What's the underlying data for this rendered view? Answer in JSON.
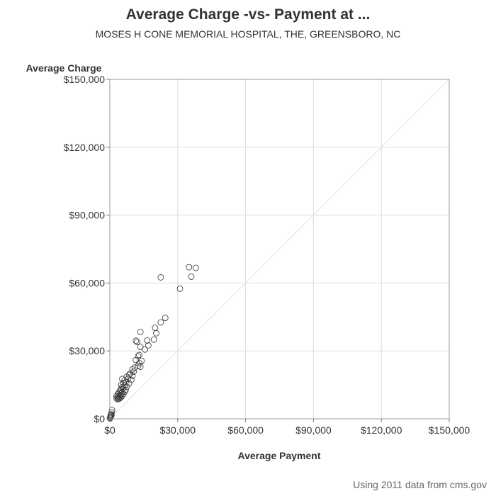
{
  "chart_data": {
    "type": "scatter",
    "title": "Average Charge -vs- Payment at ...",
    "subtitle": "MOSES H CONE MEMORIAL HOSPITAL, THE, GREENSBORO, NC",
    "xlabel": "Average Payment",
    "ylabel": "Average Charge",
    "xlim": [
      0,
      150000
    ],
    "ylim": [
      0,
      150000
    ],
    "xticks": [
      0,
      30000,
      60000,
      90000,
      120000,
      150000
    ],
    "yticks": [
      0,
      30000,
      60000,
      90000,
      120000,
      150000
    ],
    "xtick_labels": [
      "$0",
      "$30,000",
      "$60,000",
      "$90,000",
      "$120,000",
      "$150,000"
    ],
    "ytick_labels": [
      "$0",
      "$30,000",
      "$60,000",
      "$90,000",
      "$120,000",
      "$150,000"
    ],
    "grid": true,
    "reference_line": "y = x",
    "marker": "open-circle",
    "marker_color": "#333333",
    "grid_color": "#dddddd",
    "points": [
      {
        "x": 35000,
        "y": 67000
      },
      {
        "x": 38000,
        "y": 66700
      },
      {
        "x": 22500,
        "y": 62500
      },
      {
        "x": 36000,
        "y": 62800
      },
      {
        "x": 31000,
        "y": 57500
      },
      {
        "x": 24500,
        "y": 44600
      },
      {
        "x": 22500,
        "y": 42600
      },
      {
        "x": 20000,
        "y": 40200
      },
      {
        "x": 20500,
        "y": 37800
      },
      {
        "x": 13500,
        "y": 38400
      },
      {
        "x": 11500,
        "y": 34500
      },
      {
        "x": 12000,
        "y": 34000
      },
      {
        "x": 16500,
        "y": 34600
      },
      {
        "x": 19500,
        "y": 35000
      },
      {
        "x": 17000,
        "y": 32400
      },
      {
        "x": 15500,
        "y": 30600
      },
      {
        "x": 13500,
        "y": 31800
      },
      {
        "x": 13000,
        "y": 28200
      },
      {
        "x": 12500,
        "y": 27600
      },
      {
        "x": 14000,
        "y": 25600
      },
      {
        "x": 11500,
        "y": 26000
      },
      {
        "x": 13000,
        "y": 24600
      },
      {
        "x": 12500,
        "y": 23400
      },
      {
        "x": 13500,
        "y": 23000
      },
      {
        "x": 11000,
        "y": 22600
      },
      {
        "x": 10000,
        "y": 21800
      },
      {
        "x": 10500,
        "y": 20800
      },
      {
        "x": 9000,
        "y": 20000
      },
      {
        "x": 8500,
        "y": 19400
      },
      {
        "x": 10000,
        "y": 19000
      },
      {
        "x": 7500,
        "y": 18600
      },
      {
        "x": 8000,
        "y": 17600
      },
      {
        "x": 9500,
        "y": 17200
      },
      {
        "x": 6500,
        "y": 17000
      },
      {
        "x": 7000,
        "y": 16200
      },
      {
        "x": 8500,
        "y": 15600
      },
      {
        "x": 5500,
        "y": 17600
      },
      {
        "x": 6000,
        "y": 15800
      },
      {
        "x": 6500,
        "y": 14800
      },
      {
        "x": 7500,
        "y": 14200
      },
      {
        "x": 5000,
        "y": 15000
      },
      {
        "x": 5500,
        "y": 14000
      },
      {
        "x": 6000,
        "y": 13400
      },
      {
        "x": 7000,
        "y": 12800
      },
      {
        "x": 5000,
        "y": 13000
      },
      {
        "x": 4500,
        "y": 12400
      },
      {
        "x": 6500,
        "y": 12000
      },
      {
        "x": 5500,
        "y": 11800
      },
      {
        "x": 4000,
        "y": 11600
      },
      {
        "x": 5000,
        "y": 11200
      },
      {
        "x": 6000,
        "y": 11000
      },
      {
        "x": 3500,
        "y": 10800
      },
      {
        "x": 4500,
        "y": 10400
      },
      {
        "x": 5500,
        "y": 10200
      },
      {
        "x": 3000,
        "y": 10000
      },
      {
        "x": 4000,
        "y": 9800
      },
      {
        "x": 5000,
        "y": 9600
      },
      {
        "x": 3500,
        "y": 9400
      },
      {
        "x": 4500,
        "y": 9200
      },
      {
        "x": 3000,
        "y": 9000
      },
      {
        "x": 4000,
        "y": 8800
      },
      {
        "x": 3500,
        "y": 8600
      },
      {
        "x": 1000,
        "y": 3800
      },
      {
        "x": 800,
        "y": 2800
      },
      {
        "x": 600,
        "y": 2000
      },
      {
        "x": 400,
        "y": 1400
      },
      {
        "x": 300,
        "y": 900
      },
      {
        "x": 200,
        "y": 500
      },
      {
        "x": 100,
        "y": 200
      },
      {
        "x": 500,
        "y": 1100
      },
      {
        "x": 700,
        "y": 1600
      }
    ]
  },
  "footnote": "Using 2011 data from cms.gov"
}
